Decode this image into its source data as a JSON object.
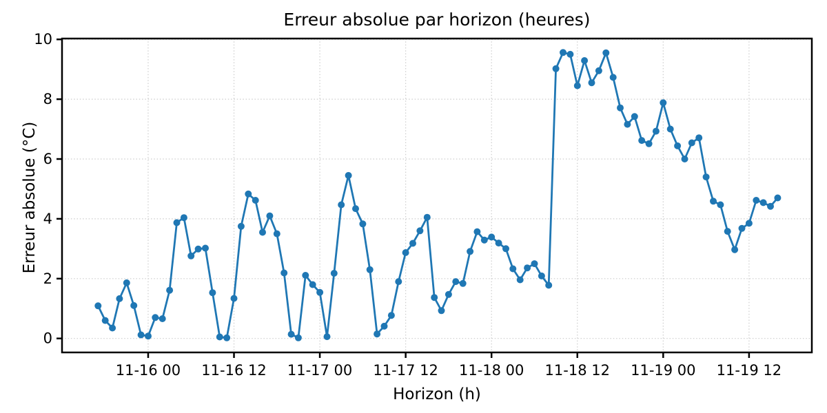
{
  "page": {
    "background": "#ffffff"
  },
  "chart_data": {
    "type": "line",
    "title": "Erreur absolue par horizon (heures)",
    "xlabel": "Horizon (h)",
    "ylabel": "Erreur absolue (°C)",
    "series_name": "Erreur absolue",
    "series_color": "#1f77b4",
    "marker": "circle",
    "line_width": 2.8,
    "marker_radius": 5,
    "grid": {
      "visible": true,
      "style": "dotted",
      "color": "#cccccc"
    },
    "legend": "none",
    "ylim": [
      -0.48,
      10.04
    ],
    "yticks": [
      0,
      2,
      4,
      6,
      8,
      10
    ],
    "xticks": {
      "labels": [
        "11-16 00",
        "11-16 12",
        "11-17 00",
        "11-17 12",
        "11-18 00",
        "11-18 12",
        "11-19 00",
        "11-19 12"
      ],
      "indices": [
        7,
        19,
        31,
        43,
        55,
        67,
        79,
        91
      ]
    },
    "x": [
      "11-15 17",
      "11-15 18",
      "11-15 19",
      "11-15 20",
      "11-15 21",
      "11-15 22",
      "11-15 23",
      "11-16 00",
      "11-16 01",
      "11-16 02",
      "11-16 03",
      "11-16 04",
      "11-16 05",
      "11-16 06",
      "11-16 07",
      "11-16 08",
      "11-16 09",
      "11-16 10",
      "11-16 11",
      "11-16 12",
      "11-16 13",
      "11-16 14",
      "11-16 15",
      "11-16 16",
      "11-16 17",
      "11-16 18",
      "11-16 19",
      "11-16 20",
      "11-16 21",
      "11-16 22",
      "11-16 23",
      "11-17 00",
      "11-17 01",
      "11-17 02",
      "11-17 03",
      "11-17 04",
      "11-17 05",
      "11-17 06",
      "11-17 07",
      "11-17 08",
      "11-17 09",
      "11-17 10",
      "11-17 11",
      "11-17 12",
      "11-17 13",
      "11-17 14",
      "11-17 15",
      "11-17 16",
      "11-17 17",
      "11-17 18",
      "11-17 19",
      "11-17 20",
      "11-17 21",
      "11-17 22",
      "11-17 23",
      "11-18 00",
      "11-18 01",
      "11-18 02",
      "11-18 03",
      "11-18 04",
      "11-18 05",
      "11-18 06",
      "11-18 07",
      "11-18 08",
      "11-18 09",
      "11-18 10",
      "11-18 11",
      "11-18 12",
      "11-18 13",
      "11-18 14",
      "11-18 15",
      "11-18 16",
      "11-18 17",
      "11-18 18",
      "11-18 19",
      "11-18 20",
      "11-18 21",
      "11-18 22",
      "11-18 23",
      "11-19 00",
      "11-19 01",
      "11-19 02",
      "11-19 03",
      "11-19 04",
      "11-19 05",
      "11-19 06",
      "11-19 07",
      "11-19 08",
      "11-19 09",
      "11-19 10",
      "11-19 11",
      "11-19 12",
      "11-19 13",
      "11-19 14",
      "11-19 15",
      "11-19 16"
    ],
    "values": [
      1.09,
      0.6,
      0.35,
      1.33,
      1.86,
      1.1,
      0.12,
      0.08,
      0.7,
      0.66,
      1.61,
      3.87,
      4.04,
      2.76,
      2.99,
      3.02,
      1.53,
      0.05,
      0.02,
      1.34,
      3.75,
      4.83,
      4.62,
      3.55,
      4.1,
      3.5,
      2.19,
      0.14,
      0.02,
      2.11,
      1.8,
      1.54,
      0.06,
      2.18,
      4.47,
      5.45,
      4.34,
      3.83,
      2.3,
      0.15,
      0.41,
      0.77,
      1.9,
      2.87,
      3.18,
      3.6,
      4.05,
      1.37,
      0.93,
      1.47,
      1.9,
      1.84,
      2.91,
      3.57,
      3.29,
      3.39,
      3.19,
      3.0,
      2.33,
      1.96,
      2.36,
      2.5,
      2.09,
      1.78,
      9.02,
      9.56,
      9.5,
      8.45,
      9.29,
      8.55,
      8.95,
      9.55,
      8.73,
      7.71,
      7.16,
      7.42,
      6.62,
      6.51,
      6.93,
      7.88,
      7.0,
      6.44,
      6.0,
      6.54,
      6.71,
      5.4,
      4.59,
      4.47,
      3.58,
      2.97,
      3.68,
      3.85,
      4.62,
      4.54,
      4.42,
      4.7
    ]
  }
}
